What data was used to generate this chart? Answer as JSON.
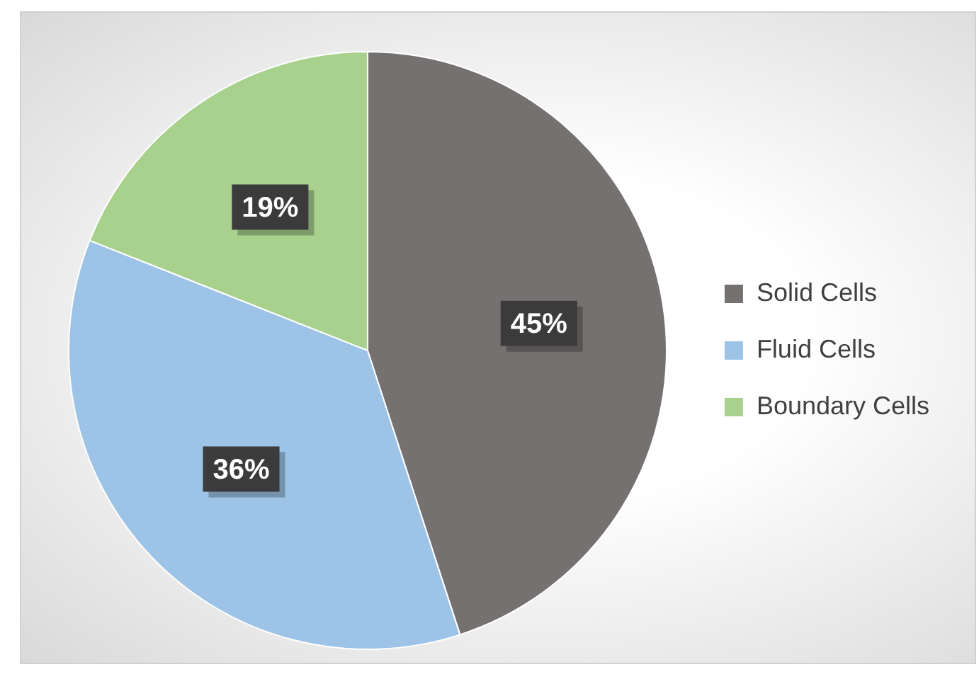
{
  "chart_data": {
    "type": "pie",
    "categories": [
      "Solid Cells",
      "Fluid Cells",
      "Boundary Cells"
    ],
    "values": [
      45,
      36,
      19
    ],
    "colors": [
      "#767171",
      "#9dc3e6",
      "#a9d18e"
    ],
    "value_labels": [
      "45%",
      "36%",
      "19%"
    ],
    "legend": "right"
  }
}
